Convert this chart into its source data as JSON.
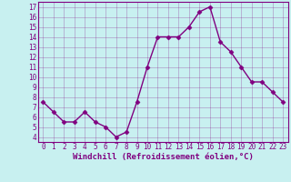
{
  "x": [
    0,
    1,
    2,
    3,
    4,
    5,
    6,
    7,
    8,
    9,
    10,
    11,
    12,
    13,
    14,
    15,
    16,
    17,
    18,
    19,
    20,
    21,
    22,
    23
  ],
  "y": [
    7.5,
    6.5,
    5.5,
    5.5,
    6.5,
    5.5,
    5.0,
    4.0,
    4.5,
    7.5,
    11.0,
    14.0,
    14.0,
    14.0,
    15.0,
    16.5,
    17.0,
    13.5,
    12.5,
    11.0,
    9.5,
    9.5,
    8.5,
    7.5
  ],
  "line_color": "#800080",
  "marker": "D",
  "marker_size": 2.5,
  "linewidth": 1.0,
  "xlabel": "Windchill (Refroidissement éolien,°C)",
  "xlabel_fontsize": 6.5,
  "ylim": [
    3.5,
    17.5
  ],
  "xlim": [
    -0.5,
    23.5
  ],
  "yticks": [
    4,
    5,
    6,
    7,
    8,
    9,
    10,
    11,
    12,
    13,
    14,
    15,
    16,
    17
  ],
  "xticks": [
    0,
    1,
    2,
    3,
    4,
    5,
    6,
    7,
    8,
    9,
    10,
    11,
    12,
    13,
    14,
    15,
    16,
    17,
    18,
    19,
    20,
    21,
    22,
    23
  ],
  "xtick_labels": [
    "0",
    "1",
    "2",
    "3",
    "4",
    "5",
    "6",
    "7",
    "8",
    "9",
    "10",
    "11",
    "12",
    "13",
    "14",
    "15",
    "16",
    "17",
    "18",
    "19",
    "20",
    "21",
    "22",
    "23"
  ],
  "ytick_labels": [
    "4",
    "5",
    "6",
    "7",
    "8",
    "9",
    "10",
    "11",
    "12",
    "13",
    "14",
    "15",
    "16",
    "17"
  ],
  "grid_color": "#800080",
  "grid_alpha": 0.35,
  "bg_color": "#c8f0f0",
  "plot_bg": "#c8f0f0",
  "tick_fontsize": 5.5,
  "xlabel_color": "#800080",
  "tick_color": "#800080",
  "spine_color": "#800080"
}
